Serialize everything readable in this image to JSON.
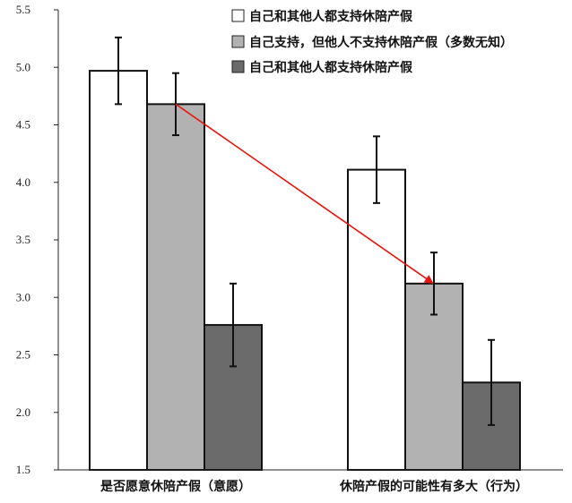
{
  "chart_data": {
    "type": "bar",
    "categories": [
      "是否愿意休陪产假（意愿）",
      "休陪产假的可能性有多大（行为）"
    ],
    "series": [
      {
        "name": "自己和其他人都支持休陪产假",
        "values": [
          4.97,
          4.11
        ],
        "errors": [
          0.29,
          0.29
        ],
        "color": "#ffffff"
      },
      {
        "name": "自己支持，但他人不支持休陪产假（多数无知）",
        "values": [
          4.68,
          3.12
        ],
        "errors": [
          0.27,
          0.27
        ],
        "color": "#b2b2b2"
      },
      {
        "name": "自己和其他人都支持休陪产假",
        "values": [
          2.76,
          2.26
        ],
        "errors": [
          0.36,
          0.37
        ],
        "color": "#6b6b6b"
      }
    ],
    "ylim": [
      1.5,
      5.5
    ],
    "yticks": [
      "1.5",
      "2.0",
      "2.5",
      "3.0",
      "3.5",
      "4.0",
      "4.5",
      "5.0",
      "5.5"
    ],
    "legend_position": "top-right",
    "annotation": {
      "type": "arrow",
      "color": "#e8140c",
      "from": {
        "category": 0,
        "series": 1
      },
      "to": {
        "category": 1,
        "series": 1
      }
    }
  }
}
